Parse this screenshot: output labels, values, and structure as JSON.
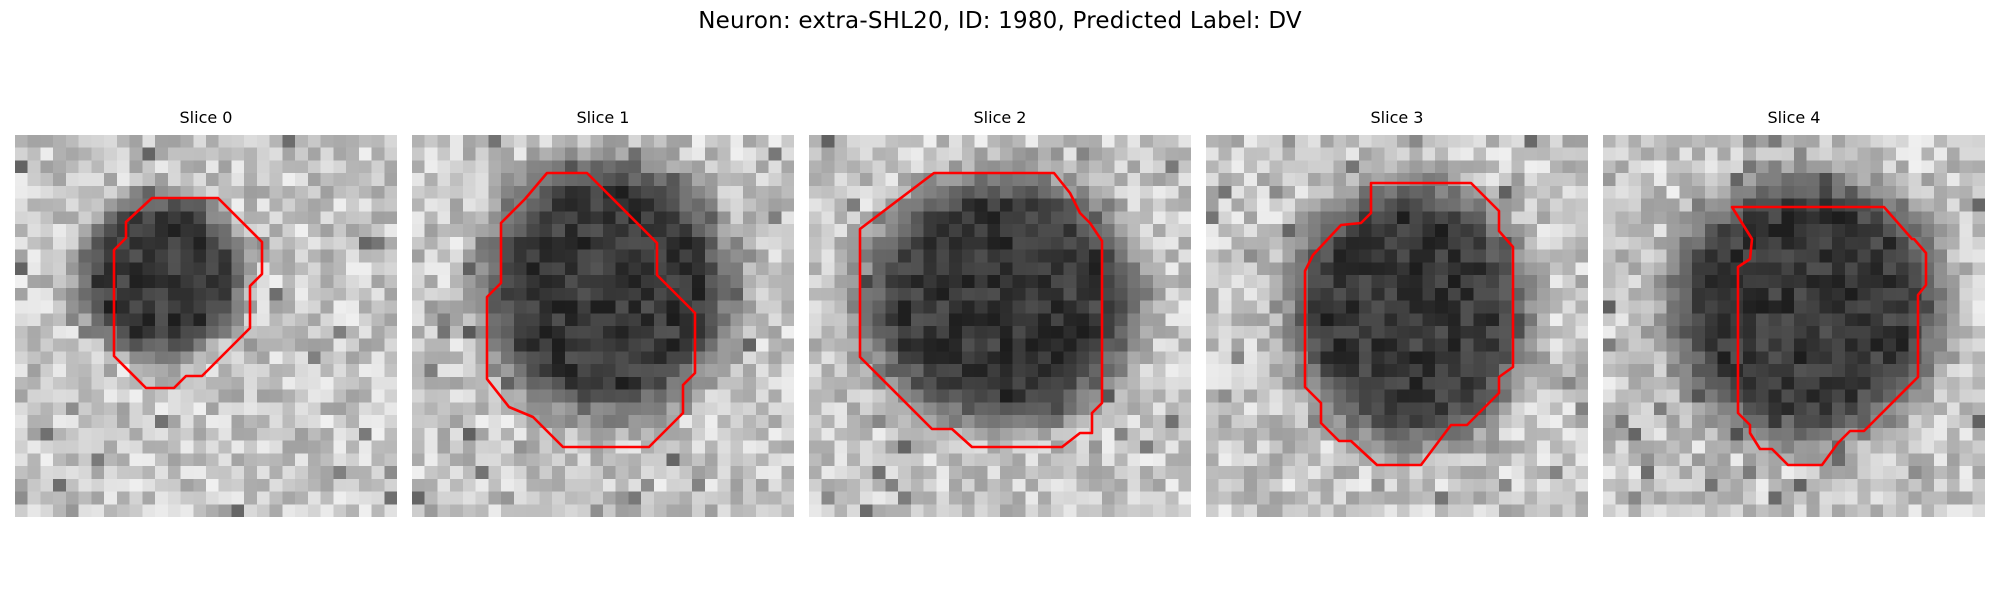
{
  "figure": {
    "title": "Neuron: extra-SHL20, ID: 1980, Predicted Label: DV"
  },
  "colors": {
    "contour": "#ff0000",
    "background": "#ffffff"
  },
  "panels": [
    {
      "title": "Slice 0"
    },
    {
      "title": "Slice 1"
    },
    {
      "title": "Slice 2"
    },
    {
      "title": "Slice 3"
    },
    {
      "title": "Slice 4"
    }
  ]
}
